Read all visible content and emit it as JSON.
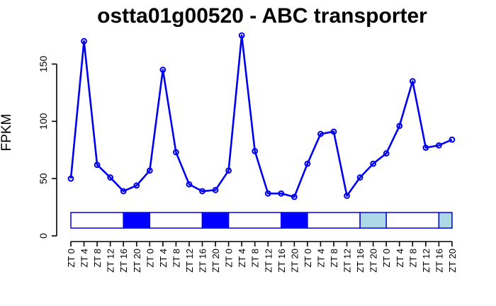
{
  "chart_data": {
    "type": "line",
    "title": "ostta01g00520 - ABC transporter",
    "xlabel": "",
    "ylabel": "FPKM",
    "ylim": [
      0,
      175
    ],
    "yticks": [
      0,
      50,
      100,
      150
    ],
    "categories": [
      "ZT 0",
      "ZT 4",
      "ZT 8",
      "ZT 12",
      "ZT 16",
      "ZT 20",
      "ZT 0",
      "ZT 4",
      "ZT 8",
      "ZT 12",
      "ZT 16",
      "ZT 20",
      "ZT 0",
      "ZT 4",
      "ZT 8",
      "ZT 12",
      "ZT 16",
      "ZT 20",
      "ZT 0",
      "ZT 4",
      "ZT 8",
      "ZT 12",
      "ZT 16",
      "ZT 20",
      "ZT 0",
      "ZT 4",
      "ZT 8",
      "ZT 12",
      "ZT 16",
      "ZT 20"
    ],
    "series": [
      {
        "color": "#0000ee",
        "values": [
          50,
          170,
          62,
          51,
          39,
          44,
          57,
          145,
          73,
          45,
          39,
          40,
          57,
          175,
          74,
          37,
          37,
          34,
          63,
          89,
          91,
          35,
          51,
          63,
          72,
          96,
          135,
          77,
          79,
          84
        ]
      }
    ],
    "light_bar": {
      "segments": [
        {
          "from": 0,
          "to": 4,
          "state": "light"
        },
        {
          "from": 4,
          "to": 6,
          "state": "dark"
        },
        {
          "from": 6,
          "to": 10,
          "state": "light"
        },
        {
          "from": 10,
          "to": 12,
          "state": "dark"
        },
        {
          "from": 12,
          "to": 16,
          "state": "light"
        },
        {
          "from": 16,
          "to": 18,
          "state": "dark"
        },
        {
          "from": 18,
          "to": 22,
          "state": "light"
        },
        {
          "from": 22,
          "to": 24,
          "state": "subjective-dark"
        },
        {
          "from": 24,
          "to": 28,
          "state": "light"
        },
        {
          "from": 28,
          "to": 29,
          "state": "subjective-dark"
        }
      ],
      "colors": {
        "light": "#ffffff",
        "dark": "#0000ff",
        "subjective-dark": "#add8e6",
        "border": "#0000ee"
      }
    },
    "grid": false,
    "legend": "none"
  }
}
